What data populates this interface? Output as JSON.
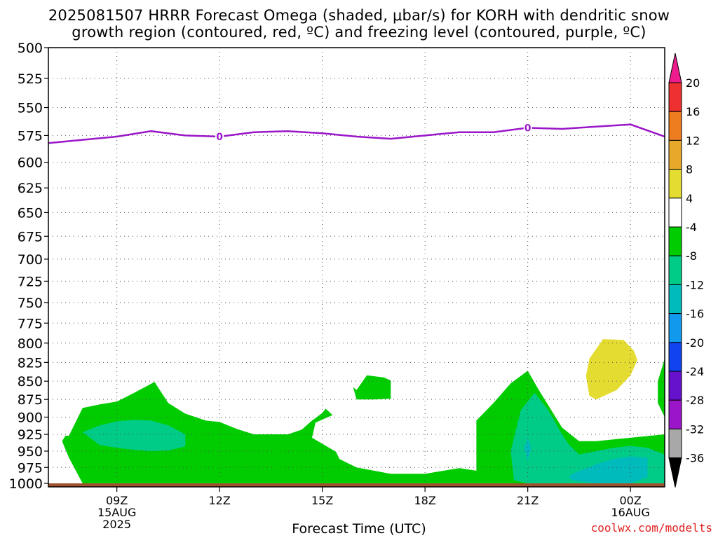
{
  "title_line1": "2025081507 HRRR Forecast Omega (shaded, μbar/s) for KORH with dendritic snow",
  "title_line2": "growth region (contoured, red, ºC) and freezing level (contoured, purple, ºC)",
  "credit": "coolwx.com/modelts",
  "colors": {
    "freezing_line": "#9a16c8",
    "ground": "#a0522d",
    "omega_-8": "#00cc00",
    "omega_-12": "#00cc88",
    "omega_-16": "#00bbbb",
    "omega_4": "#e4dc30"
  },
  "chart_data": {
    "type": "heatmap",
    "title": "2025081507 HRRR Forecast Omega (shaded, μbar/s) for KORH with dendritic snow growth region (contoured, red, ºC) and freezing level (contoured, purple, ºC)",
    "xlabel": "Forecast Time (UTC)",
    "ylabel": "",
    "x_range_hours": [
      7,
      25
    ],
    "x_ticks": [
      {
        "hour": 9,
        "labels": [
          "09Z",
          "15AUG",
          "2025"
        ]
      },
      {
        "hour": 12,
        "labels": [
          "12Z"
        ]
      },
      {
        "hour": 15,
        "labels": [
          "15Z"
        ]
      },
      {
        "hour": 18,
        "labels": [
          "18Z"
        ]
      },
      {
        "hour": 21,
        "labels": [
          "21Z"
        ]
      },
      {
        "hour": 24,
        "labels": [
          "00Z",
          "16AUG"
        ]
      }
    ],
    "y_log_pressure": true,
    "y_range": [
      1000,
      500
    ],
    "y_ticks": [
      "500",
      "525",
      "550",
      "575",
      "600",
      "625",
      "650",
      "675",
      "700",
      "725",
      "750",
      "775",
      "800",
      "825",
      "850",
      "875",
      "900",
      "925",
      "950",
      "975",
      "1000"
    ],
    "grid": true,
    "colorbar": {
      "labels": [
        "20",
        "16",
        "12",
        "8",
        "4",
        "-4",
        "-8",
        "-12",
        "-16",
        "-20",
        "-24",
        "-28",
        "-32",
        "-36"
      ],
      "colors": [
        "#ee1c8c",
        "#ee3030",
        "#ee7d20",
        "#e8a82a",
        "#e4dc30",
        "#ffffff",
        "#00cc00",
        "#00cc88",
        "#00bbbb",
        "#1199ee",
        "#1144ee",
        "#6611cc",
        "#9a16c8",
        "#a8a8a8",
        "#000000"
      ]
    },
    "freezing_level": {
      "label": "0",
      "hours": [
        7,
        8,
        9,
        10,
        11,
        12,
        13,
        14,
        15,
        16,
        17,
        18,
        19,
        20,
        21,
        22,
        23,
        24,
        25
      ],
      "pressure": [
        582,
        579,
        576,
        571,
        575,
        576,
        572,
        571,
        573,
        576,
        578,
        575,
        572,
        572,
        568,
        569,
        567,
        565,
        576
      ],
      "label_hours": [
        12,
        21
      ]
    },
    "omega_regions": [
      {
        "level": -8,
        "hours": [
          7.6,
          8,
          8.5,
          9,
          9.5,
          10.1,
          10.5,
          11,
          11.6,
          12,
          12.5,
          13,
          13.6,
          14,
          14.4,
          14.7,
          15,
          15.1,
          15.3,
          14.8,
          14.7,
          15.4,
          15.5,
          16,
          17,
          18,
          19,
          19.5,
          19.5,
          19.5,
          20,
          20.5,
          21,
          21.3,
          22,
          22.5,
          23,
          24,
          25,
          25,
          25,
          24,
          23,
          22,
          21,
          20,
          19,
          18,
          17,
          16,
          15,
          14,
          13,
          12,
          11,
          10,
          9,
          8,
          7.6,
          7.4,
          7.5
        ],
        "pressure": [
          927,
          887,
          882,
          878,
          866,
          851,
          880,
          895,
          905,
          907,
          917,
          925,
          925,
          925,
          918,
          905,
          894,
          888,
          897,
          908,
          930,
          951,
          962,
          975,
          985,
          985,
          976,
          980,
          950,
          905,
          880,
          853,
          836,
          860,
          915,
          935,
          935,
          930,
          925,
          1000,
          1000,
          1000,
          1000,
          1000,
          1000,
          1000,
          1000,
          1000,
          1000,
          1000,
          1000,
          1000,
          1000,
          1000,
          1000,
          1000,
          1000,
          1000,
          960,
          935,
          927
        ]
      },
      {
        "level": -12,
        "hours": [
          8,
          8.5,
          9,
          9.5,
          10,
          10.5,
          11,
          11,
          10.5,
          10,
          9.5,
          9,
          8.5,
          8
        ],
        "pressure": [
          922,
          912,
          906,
          904,
          905,
          912,
          925,
          943,
          949,
          950,
          948,
          945,
          941,
          922
        ]
      },
      {
        "level": -8,
        "hours": [
          16,
          16.3,
          16.8,
          17,
          17,
          16.5,
          16,
          15.9,
          16
        ],
        "pressure": [
          862,
          842,
          845,
          849,
          874,
          875,
          875,
          858,
          862
        ]
      },
      {
        "level": 4,
        "hours": [
          22.8,
          23.2,
          23.8,
          24.1,
          24.2,
          24.0,
          23.6,
          23.0,
          22.8,
          22.7,
          22.8
        ],
        "pressure": [
          820,
          795,
          796,
          810,
          822,
          842,
          862,
          875,
          870,
          843,
          820
        ]
      },
      {
        "level": -8,
        "hours": [
          25,
          24.8,
          24.8,
          25
        ],
        "pressure": [
          820,
          850,
          880,
          900
        ]
      },
      {
        "level": -12,
        "hours": [
          20.8,
          21.2,
          21.6,
          22,
          22.2,
          22.5,
          23,
          23.5,
          24,
          24.5,
          25,
          25,
          24,
          23,
          22,
          21,
          20.6,
          20.5,
          20.8
        ],
        "pressure": [
          890,
          866,
          890,
          925,
          940,
          955,
          950,
          945,
          942,
          945,
          955,
          1000,
          1000,
          1000,
          1000,
          1000,
          995,
          950,
          890
        ]
      },
      {
        "level": -16,
        "hours": [
          21.0,
          21.1,
          21.0,
          20.9,
          21.0
        ],
        "pressure": [
          930,
          945,
          965,
          945,
          930
        ]
      },
      {
        "level": -16,
        "hours": [
          22.3,
          23,
          23.5,
          24,
          24.5,
          24.5,
          24,
          23,
          22.3,
          22.2,
          22.3
        ],
        "pressure": [
          985,
          970,
          962,
          958,
          960,
          990,
          1000,
          1000,
          995,
          990,
          985
        ]
      }
    ]
  }
}
